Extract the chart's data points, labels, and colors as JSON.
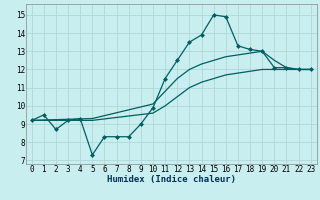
{
  "xlabel": "Humidex (Indice chaleur)",
  "background_color": "#c8eef0",
  "grid_color": "#b0d8d8",
  "line_color": "#006060",
  "xlim": [
    -0.5,
    23.5
  ],
  "ylim": [
    6.8,
    15.6
  ],
  "xticks": [
    0,
    1,
    2,
    3,
    4,
    5,
    6,
    7,
    8,
    9,
    10,
    11,
    12,
    13,
    14,
    15,
    16,
    17,
    18,
    19,
    20,
    21,
    22,
    23
  ],
  "yticks": [
    7,
    8,
    9,
    10,
    11,
    12,
    13,
    14,
    15
  ],
  "line1_x": [
    0,
    1,
    2,
    3,
    4,
    5,
    6,
    7,
    8,
    9,
    10,
    11,
    12,
    13,
    14,
    15,
    16,
    17,
    18,
    19,
    20,
    21,
    22,
    23
  ],
  "line1_y": [
    9.2,
    9.5,
    8.7,
    9.2,
    9.3,
    7.3,
    8.3,
    8.3,
    8.3,
    9.0,
    9.9,
    11.5,
    12.5,
    13.5,
    13.9,
    15.0,
    14.9,
    13.3,
    13.1,
    13.0,
    12.1,
    12.1,
    12.0,
    12.0
  ],
  "line2_x": [
    0,
    5,
    10,
    11,
    12,
    13,
    14,
    15,
    16,
    17,
    18,
    19,
    20,
    21,
    22,
    23
  ],
  "line2_y": [
    9.2,
    9.3,
    10.1,
    10.8,
    11.5,
    12.0,
    12.3,
    12.5,
    12.7,
    12.8,
    12.9,
    13.0,
    12.5,
    12.1,
    12.0,
    12.0
  ],
  "line3_x": [
    0,
    5,
    10,
    11,
    12,
    13,
    14,
    15,
    16,
    17,
    18,
    19,
    20,
    21,
    22,
    23
  ],
  "line3_y": [
    9.2,
    9.2,
    9.6,
    10.0,
    10.5,
    11.0,
    11.3,
    11.5,
    11.7,
    11.8,
    11.9,
    12.0,
    12.0,
    12.0,
    12.0,
    12.0
  ],
  "xlabel_fontsize": 6.5,
  "tick_fontsize": 5.5,
  "marker_size": 2.5
}
